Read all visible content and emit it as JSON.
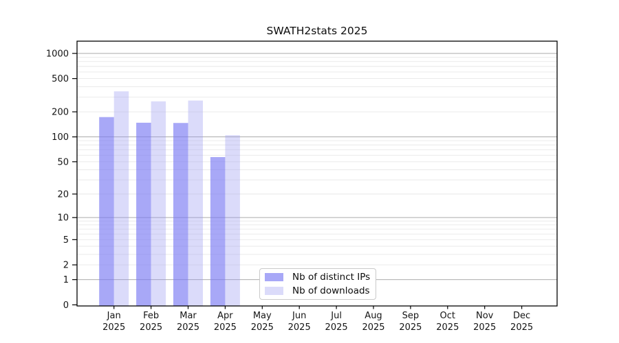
{
  "title": "SWATH2stats 2025",
  "legend": {
    "items": [
      {
        "label": "Nb of distinct IPs",
        "color": "rgba(121,121,243,0.65)"
      },
      {
        "label": "Nb of downloads",
        "color": "rgba(152,152,240,0.35)"
      }
    ]
  },
  "colors": {
    "distinct_ips_bar": "rgba(121,121,243,0.65)",
    "downloads_bar": "rgba(152,152,240,0.35)",
    "major_gridline": "#ababab",
    "minor_gridline": "#e8e8e8",
    "axis": "#000000"
  },
  "chart_data": {
    "type": "bar",
    "title": "SWATH2stats 2025",
    "categories": [
      "Jan",
      "Feb",
      "Mar",
      "Apr",
      "May",
      "Jun",
      "Jul",
      "Aug",
      "Sep",
      "Oct",
      "Nov",
      "Dec"
    ],
    "xlabel_year": "2025",
    "series": [
      {
        "name": "Nb of distinct IPs",
        "slug": "distinct-ips",
        "color": "rgba(121,121,243,0.65)",
        "values": [
          173,
          148,
          147,
          57,
          null,
          null,
          null,
          null,
          null,
          null,
          null,
          null
        ]
      },
      {
        "name": "Nb of downloads",
        "slug": "downloads",
        "color": "rgba(152,152,240,0.35)",
        "values": [
          352,
          267,
          273,
          105,
          null,
          null,
          null,
          null,
          null,
          null,
          null,
          null
        ]
      }
    ],
    "yscale": "log1p",
    "yticks": [
      0,
      1,
      2,
      5,
      10,
      20,
      50,
      100,
      200,
      500,
      1000
    ],
    "major_gridlines": [
      1,
      10,
      100,
      1000
    ],
    "ylim": [
      0,
      1400
    ],
    "xlabel": "",
    "ylabel": "",
    "grid": "horizontal",
    "legend_position": "inside-bottom-center"
  }
}
